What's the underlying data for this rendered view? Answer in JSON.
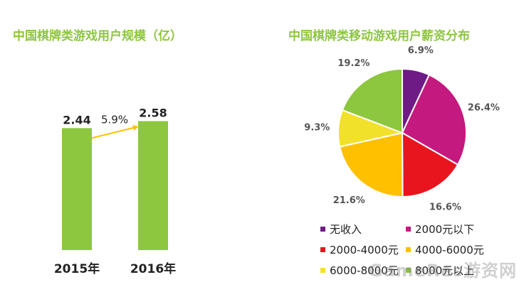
{
  "chart_data": [
    {
      "type": "bar",
      "title": "中国棋牌类游戏用户规模（亿）",
      "categories": [
        "2015年",
        "2016年"
      ],
      "values": [
        2.44,
        2.58
      ],
      "value_labels": [
        "2.44",
        "2.58"
      ],
      "growth_label": "5.9%",
      "ylim": [
        0,
        2.8
      ],
      "bar_color": "#8dc63f",
      "arrow_color": "#ffc000",
      "grid": false
    },
    {
      "type": "pie",
      "title": "中国棋牌类移动游戏用户薪资分布",
      "legend_position": "bottom",
      "slices": [
        {
          "label": "无收入",
          "value": 6.9,
          "display": "6.9%",
          "color": "#6f1b85"
        },
        {
          "label": "2000元以下",
          "value": 26.4,
          "display": "26.4%",
          "color": "#c4197e"
        },
        {
          "label": "2000-4000元",
          "value": 16.6,
          "display": "16.6%",
          "color": "#e8141e"
        },
        {
          "label": "4000-6000元",
          "value": 21.6,
          "display": "21.6%",
          "color": "#ffc000"
        },
        {
          "label": "6000-8000元",
          "value": 9.3,
          "display": "9.3%",
          "color": "#f2e12b"
        },
        {
          "label": "8000元以上",
          "value": 19.2,
          "display": "19.2%",
          "color": "#8dc63f"
        }
      ]
    }
  ],
  "watermark": "GameRes游资网"
}
